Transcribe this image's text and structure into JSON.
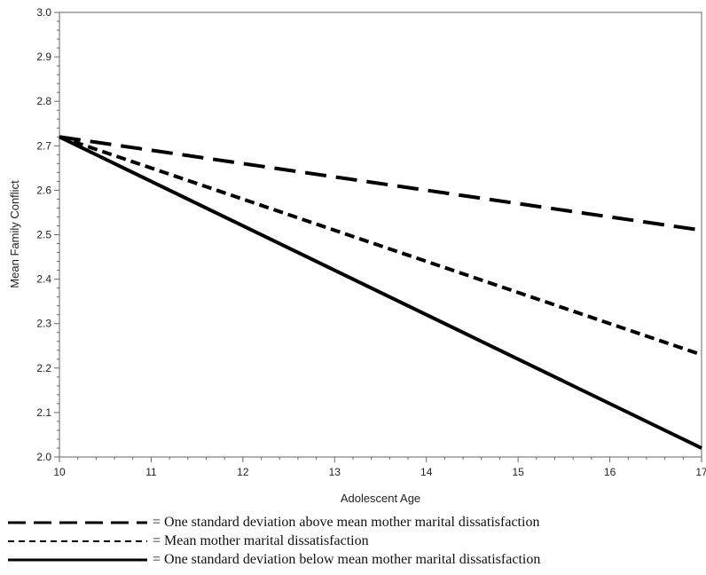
{
  "chart_data": {
    "type": "line",
    "xlabel": "Adolescent Age",
    "ylabel": "Mean Family Conflict",
    "xlim": [
      10,
      17
    ],
    "ylim": [
      2.0,
      3.0
    ],
    "x_ticks": [
      "10",
      "11",
      "12",
      "13",
      "14",
      "15",
      "16",
      "17"
    ],
    "y_ticks": [
      "2.0",
      "2.1",
      "2.2",
      "2.3",
      "2.4",
      "2.5",
      "2.6",
      "2.7",
      "2.8",
      "2.9",
      "3.0"
    ],
    "grid": false,
    "legend_position": "bottom",
    "series": [
      {
        "name": "= One standard deviation above mean mother marital dissatisfaction",
        "style": "long-dash",
        "x": [
          10,
          17
        ],
        "y": [
          2.72,
          2.51
        ]
      },
      {
        "name": "= Mean mother marital dissatisfaction",
        "style": "short-dash",
        "x": [
          10,
          17
        ],
        "y": [
          2.72,
          2.23
        ]
      },
      {
        "name": "= One standard deviation below mean mother marital dissatisfaction",
        "style": "solid",
        "x": [
          10,
          17
        ],
        "y": [
          2.72,
          2.02
        ]
      }
    ]
  }
}
